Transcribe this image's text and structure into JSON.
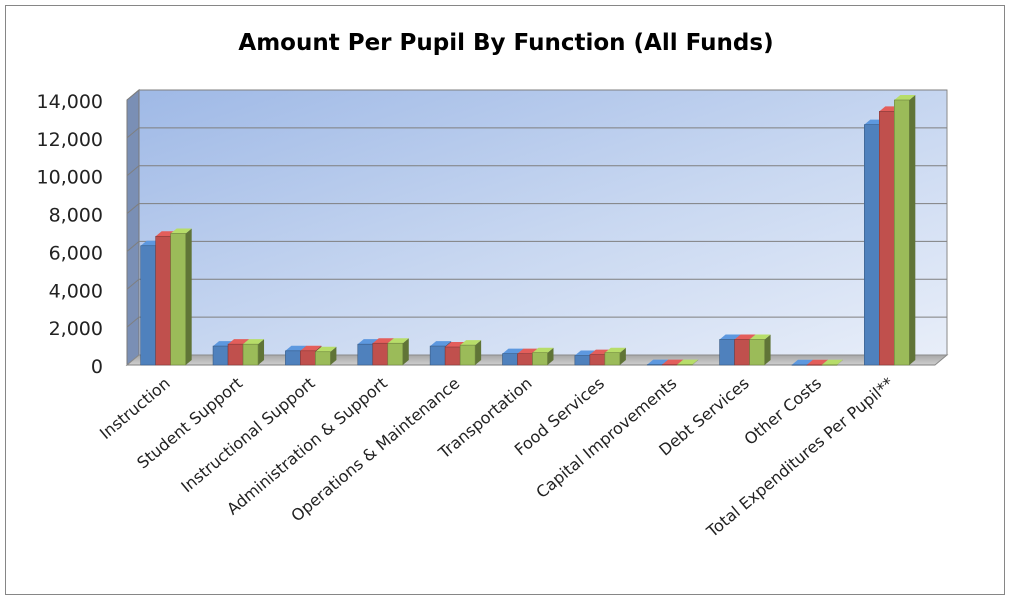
{
  "chart_data": {
    "type": "bar",
    "title": "Amount Per Pupil By Function (All Funds)",
    "categories": [
      "Instruction",
      "Student Support",
      "Instructional Support",
      "Administration & Support",
      "Operations & Maintenance",
      "Transportation",
      "Food Services",
      "Capital Improvements",
      "Debt Services",
      "Other Costs",
      "Total Expenditures Per Pupil**"
    ],
    "series": [
      {
        "color": "#4F81BD",
        "values": [
          6300,
          1000,
          750,
          1100,
          1000,
          600,
          500,
          20,
          1350,
          10,
          12700
        ]
      },
      {
        "color": "#C0504D",
        "values": [
          6800,
          1100,
          750,
          1150,
          950,
          600,
          550,
          20,
          1350,
          10,
          13400
        ]
      },
      {
        "color": "#9BBB59",
        "values": [
          6950,
          1100,
          700,
          1150,
          1050,
          650,
          650,
          20,
          1350,
          10,
          14000
        ]
      }
    ],
    "yticks": [
      "0",
      "2,000",
      "4,000",
      "6,000",
      "8,000",
      "10,000",
      "12,000",
      "14,000"
    ],
    "ylim": [
      0,
      14000
    ],
    "grid": true,
    "legend": "none"
  }
}
